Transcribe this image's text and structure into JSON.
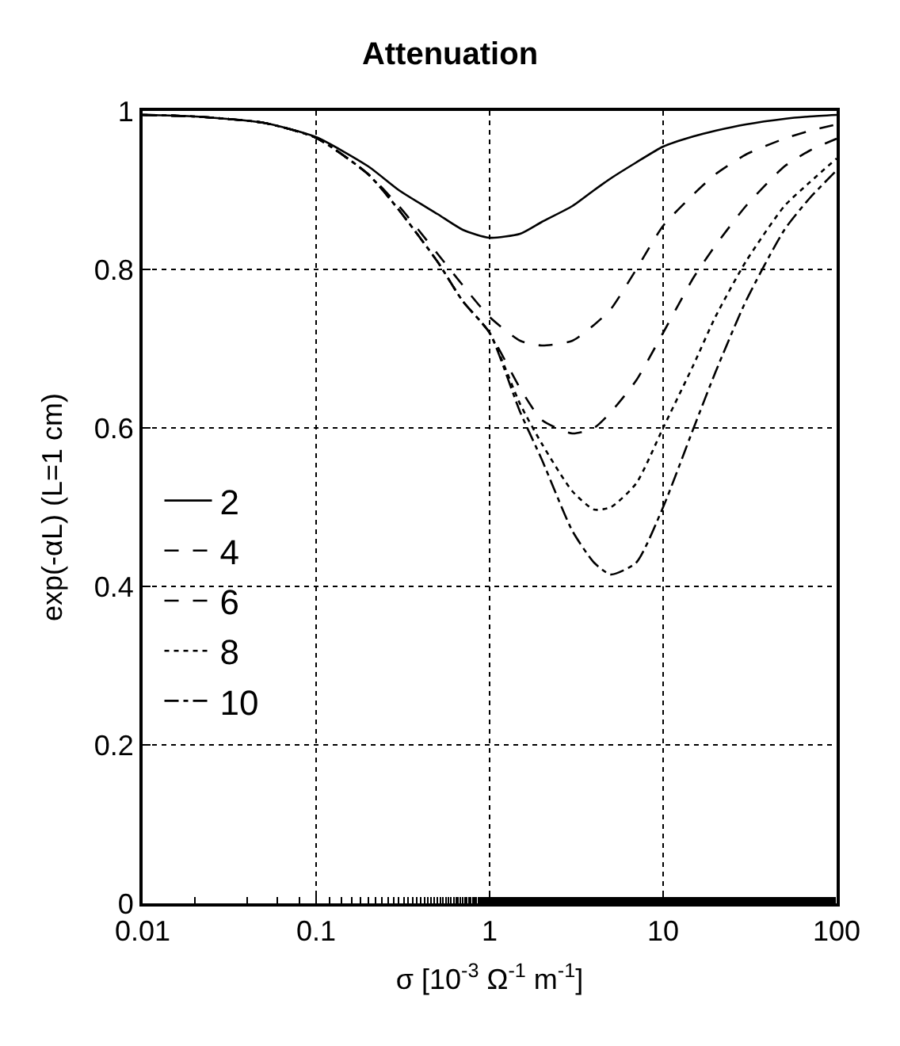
{
  "chart_data": {
    "type": "line",
    "title": "Attenuation",
    "xlabel": "σ [10$^{-3}$ Ω$^{-1}$ m$^{-1}$]",
    "ylabel": "exp(-αL) (L=1 cm)",
    "x": [
      0.01,
      0.02,
      0.05,
      0.1,
      0.2,
      0.3,
      0.5,
      0.7,
      1,
      1.5,
      2,
      3,
      4,
      5,
      7,
      10,
      15,
      20,
      30,
      50,
      70,
      100
    ],
    "series": [
      {
        "name": "2",
        "color": "#000000",
        "line_style": "solid",
        "values": [
          0.995,
          0.993,
          0.985,
          0.967,
          0.93,
          0.9,
          0.87,
          0.85,
          0.84,
          0.845,
          0.86,
          0.88,
          0.9,
          0.915,
          0.935,
          0.955,
          0.968,
          0.975,
          0.983,
          0.99,
          0.993,
          0.995
        ]
      },
      {
        "name": "4",
        "color": "#000000",
        "line_style": "dashed",
        "values": [
          0.995,
          0.993,
          0.985,
          0.966,
          0.92,
          0.88,
          0.82,
          0.78,
          0.74,
          0.71,
          0.704,
          0.71,
          0.73,
          0.75,
          0.8,
          0.855,
          0.895,
          0.92,
          0.945,
          0.965,
          0.975,
          0.983
        ]
      },
      {
        "name": "6",
        "color": "#000000",
        "line_style": "dashed",
        "values": [
          0.995,
          0.993,
          0.985,
          0.966,
          0.92,
          0.875,
          0.81,
          0.76,
          0.72,
          0.65,
          0.61,
          0.593,
          0.6,
          0.62,
          0.66,
          0.72,
          0.79,
          0.83,
          0.88,
          0.93,
          0.95,
          0.965
        ]
      },
      {
        "name": "8",
        "color": "#000000",
        "line_style": "dotted",
        "values": [
          0.995,
          0.993,
          0.985,
          0.966,
          0.92,
          0.875,
          0.81,
          0.76,
          0.72,
          0.63,
          0.58,
          0.52,
          0.497,
          0.5,
          0.53,
          0.6,
          0.68,
          0.74,
          0.81,
          0.88,
          0.91,
          0.94
        ]
      },
      {
        "name": "10",
        "color": "#000000",
        "line_style": "dashdot",
        "values": [
          0.995,
          0.993,
          0.985,
          0.966,
          0.92,
          0.875,
          0.81,
          0.76,
          0.72,
          0.62,
          0.56,
          0.47,
          0.43,
          0.415,
          0.43,
          0.5,
          0.6,
          0.67,
          0.76,
          0.85,
          0.89,
          0.925
        ]
      }
    ],
    "log": "x",
    "xlim": [
      0.01,
      100
    ],
    "xticks": [
      0.01,
      0.1,
      1,
      10,
      100
    ],
    "ylim": [
      0,
      1
    ],
    "yticks": [
      0,
      0.2,
      0.4,
      0.6,
      0.8,
      1
    ],
    "grid": true,
    "legend": "left",
    "marker": "none"
  }
}
